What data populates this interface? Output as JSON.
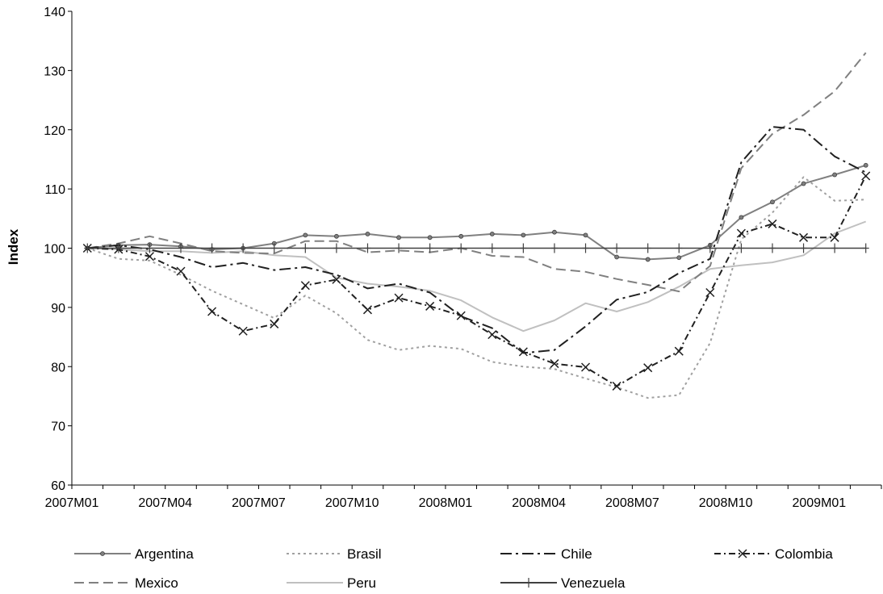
{
  "chart_data": {
    "type": "line",
    "ylabel": "Index",
    "xlabel": "",
    "ylim": [
      60,
      140
    ],
    "yticks": [
      60,
      70,
      80,
      90,
      100,
      110,
      120,
      130,
      140
    ],
    "x": [
      "2007M01",
      "2007M02",
      "2007M03",
      "2007M04",
      "2007M05",
      "2007M06",
      "2007M07",
      "2007M08",
      "2007M09",
      "2007M10",
      "2007M11",
      "2007M12",
      "2008M01",
      "2008M02",
      "2008M03",
      "2008M04",
      "2008M05",
      "2008M06",
      "2008M07",
      "2008M08",
      "2008M09",
      "2008M10",
      "2008M11",
      "2008M12",
      "2009M01",
      "2009M02"
    ],
    "xtick_labels": [
      "2007M01",
      "2007M04",
      "2007M07",
      "2007M10",
      "2008M01",
      "2008M04",
      "2008M07",
      "2008M10",
      "2009M01"
    ],
    "grid": false,
    "legend_position": "bottom",
    "series": [
      {
        "name": "Argentina",
        "color": "#808080",
        "dash": "",
        "marker": "dot",
        "values": [
          100,
          100.5,
          100.6,
          100.3,
          99.8,
          100,
          100.8,
          102.2,
          102,
          102.4,
          101.8,
          101.8,
          102,
          102.4,
          102.2,
          102.7,
          102.2,
          98.5,
          98.1,
          98.4,
          100.5,
          105.2,
          107.8,
          110.9,
          112.4,
          114
        ]
      },
      {
        "name": "Brasil",
        "color": "#a0a0a0",
        "dash": "3,4",
        "marker": "none",
        "values": [
          100,
          98.2,
          97.9,
          95.5,
          92.8,
          90.5,
          88.2,
          92,
          89,
          84.5,
          82.8,
          83.5,
          83,
          80.8,
          80,
          79.6,
          78,
          76.5,
          74.7,
          75.2,
          84,
          101.5,
          106,
          112,
          108,
          108.2
        ]
      },
      {
        "name": "Chile",
        "color": "#202020",
        "dash": "14,5,3,5",
        "marker": "none",
        "values": [
          100,
          100.5,
          99.8,
          98.5,
          96.8,
          97.5,
          96.3,
          96.8,
          95.5,
          93.2,
          94,
          92.5,
          88.5,
          86.5,
          82.3,
          82.8,
          86.8,
          91.3,
          92.6,
          95.8,
          98.2,
          114.5,
          120.5,
          120,
          115.5,
          112.8
        ]
      },
      {
        "name": "Colombia",
        "color": "#202020",
        "dash": "8,4,2,4",
        "marker": "x",
        "values": [
          100,
          99.8,
          98.6,
          96.1,
          89.3,
          86,
          87.2,
          93.7,
          94.7,
          89.6,
          91.6,
          90.2,
          88.6,
          85.4,
          82.5,
          80.5,
          79.9,
          76.7,
          79.8,
          82.6,
          92.5,
          102.5,
          104.1,
          101.8,
          101.8,
          112.2
        ]
      },
      {
        "name": "Mexico",
        "color": "#808080",
        "dash": "12,6",
        "marker": "none",
        "values": [
          100,
          100.8,
          102,
          100.8,
          99.5,
          99.2,
          99.1,
          101.2,
          101.2,
          99.3,
          99.6,
          99.3,
          100,
          98.7,
          98.5,
          96.5,
          96,
          94.8,
          93.8,
          92.7,
          97,
          113.5,
          119.3,
          122.5,
          126.5,
          133
        ]
      },
      {
        "name": "Peru",
        "color": "#c0c0c0",
        "dash": "",
        "marker": "none",
        "values": [
          100,
          99.8,
          99.5,
          99.5,
          99.2,
          99.5,
          98.8,
          98.5,
          95,
          94,
          93.5,
          92.8,
          91.2,
          88.3,
          86,
          87.8,
          90.7,
          89.3,
          90.9,
          93.5,
          96.5,
          97.1,
          97.6,
          98.8,
          102.5,
          104.5
        ]
      },
      {
        "name": "Venezuela",
        "color": "#404040",
        "dash": "",
        "marker": "plus",
        "values": [
          100,
          100,
          100,
          100,
          100,
          100,
          100,
          100,
          100,
          100,
          100,
          100,
          100,
          100,
          100,
          100,
          100,
          100,
          100,
          100,
          100,
          100,
          100,
          100,
          100,
          100
        ]
      }
    ]
  }
}
